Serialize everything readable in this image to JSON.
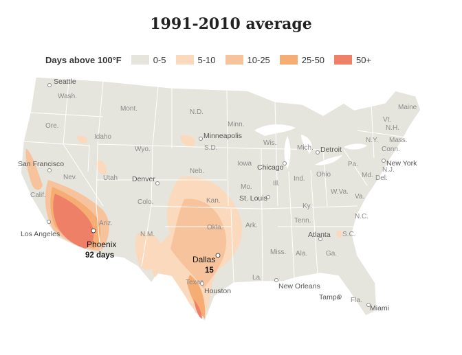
{
  "title": "1991-2010 average",
  "legend": {
    "title": "Days above 100°F",
    "items": [
      {
        "label": "0-5",
        "color": "#e6e5dd"
      },
      {
        "label": "5-10",
        "color": "#fbd9bd"
      },
      {
        "label": "10-25",
        "color": "#f7c39c"
      },
      {
        "label": "25-50",
        "color": "#f5ad74"
      },
      {
        "label": "50+",
        "color": "#ef8068"
      }
    ]
  },
  "states": [
    "Wash.",
    "Ore.",
    "Calif.",
    "Nev.",
    "Idaho",
    "Mont.",
    "Wyo.",
    "Utah",
    "Ariz.",
    "Colo.",
    "N.M.",
    "N.D.",
    "S.D.",
    "Neb.",
    "Kan.",
    "Okla.",
    "Texas",
    "Minn.",
    "Iowa",
    "Mo.",
    "Ark.",
    "La.",
    "Wis.",
    "Ill.",
    "Mich.",
    "Ind.",
    "Ohio",
    "Ky.",
    "Tenn.",
    "Miss.",
    "Ala.",
    "Ga.",
    "Fla.",
    "S.C.",
    "N.C.",
    "Va.",
    "W.Va.",
    "Pa.",
    "N.Y.",
    "Vt.",
    "N.H.",
    "Maine",
    "Mass.",
    "Conn.",
    "N.J.",
    "Md.",
    "Del."
  ],
  "cities": [
    "Seattle",
    "San Francisco",
    "Los Angeles",
    "Denver",
    "Minneapolis",
    "Chicago",
    "Detroit",
    "St. Louis",
    "Atlanta",
    "Houston",
    "New Orleans",
    "Tampa",
    "Miami",
    "New York"
  ],
  "highlights": {
    "phoenix": {
      "name": "Phoenix",
      "value": "92 days"
    },
    "dallas": {
      "name": "Dallas",
      "value": "15"
    }
  }
}
